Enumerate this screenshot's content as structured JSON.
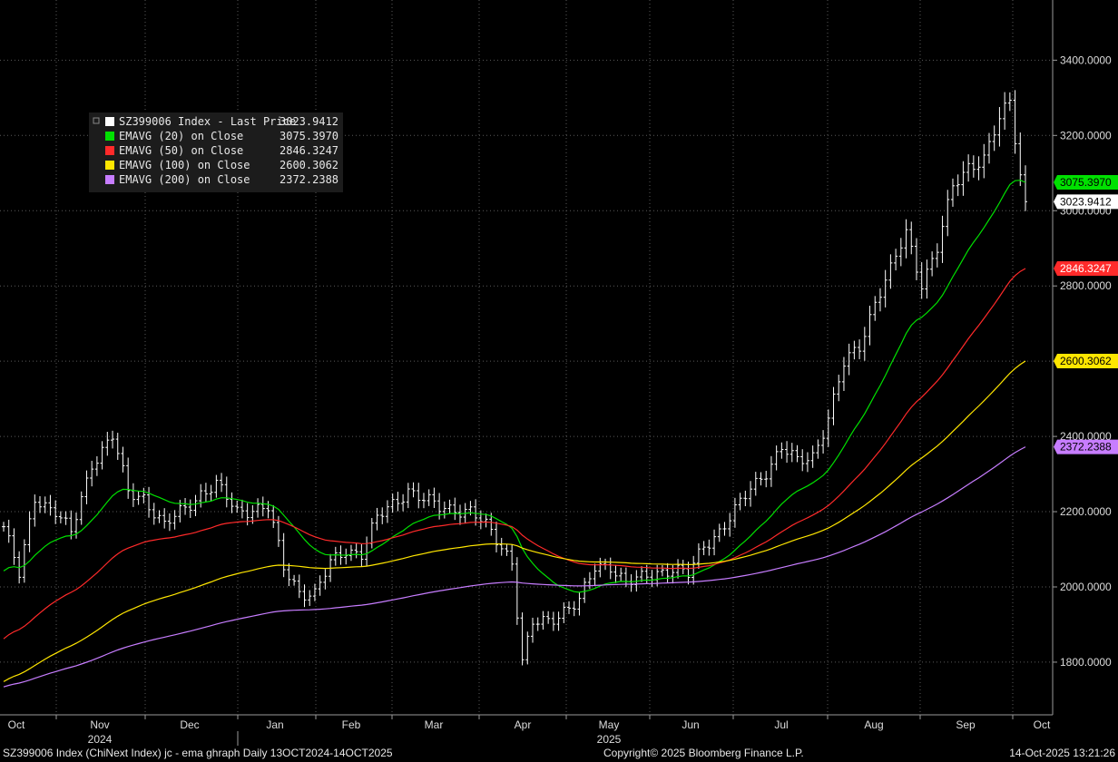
{
  "footer": {
    "left": "SZ399006 Index (ChiNext Index) jc - ema ghraph Daily 13OCT2024-14OCT2025",
    "center": "Copyright© 2025 Bloomberg Finance L.P.",
    "right": "14-Oct-2025 13:21:26"
  },
  "chart_data": {
    "type": "line",
    "title": "",
    "ylim": [
      1660,
      3560
    ],
    "y_ticks": [
      "1800.0000",
      "2000.0000",
      "2200.0000",
      "2400.0000",
      "2600.0000",
      "2800.0000",
      "3000.0000",
      "3200.0000",
      "3400.0000"
    ],
    "y_tick_values": [
      1800,
      2000,
      2200,
      2400,
      2600,
      2800,
      3000,
      3200,
      3400
    ],
    "x_month_labels": [
      "Oct",
      "Nov",
      "Dec",
      "Jan",
      "Feb",
      "Mar",
      "Apr",
      "May",
      "Jun",
      "Jul",
      "Aug",
      "Sep",
      "Oct"
    ],
    "x_year_labels": [
      {
        "label": "2024",
        "month_index": 1
      },
      {
        "label": "2025",
        "month_index": 7
      }
    ],
    "grid": true,
    "legend_position": "top-left",
    "legend": [
      {
        "name": "SZ399006 Index - Last Price",
        "value": "3023.9412",
        "color": "#ffffff"
      },
      {
        "name": "EMAVG (20)  on Close",
        "value": "3075.3970",
        "color": "#00e000"
      },
      {
        "name": "EMAVG (50)  on Close",
        "value": "2846.3247",
        "color": "#ff2a2a"
      },
      {
        "name": "EMAVG (100)  on Close",
        "value": "2600.3062",
        "color": "#ffe600"
      },
      {
        "name": "EMAVG (200)  on Close",
        "value": "2372.2388",
        "color": "#c77dff"
      }
    ],
    "price_anchors": [
      [
        0,
        2160
      ],
      [
        3,
        2030
      ],
      [
        6,
        2240
      ],
      [
        10,
        2200
      ],
      [
        13,
        2140
      ],
      [
        17,
        2330
      ],
      [
        21,
        2400
      ],
      [
        24,
        2250
      ],
      [
        27,
        2240
      ],
      [
        31,
        2160
      ],
      [
        35,
        2210
      ],
      [
        38,
        2250
      ],
      [
        41,
        2270
      ],
      [
        45,
        2200
      ],
      [
        48,
        2210
      ],
      [
        51,
        2210
      ],
      [
        54,
        2050
      ],
      [
        57,
        1990
      ],
      [
        60,
        1980
      ],
      [
        63,
        2060
      ],
      [
        66,
        2100
      ],
      [
        69,
        2090
      ],
      [
        72,
        2180
      ],
      [
        75,
        2220
      ],
      [
        78,
        2260
      ],
      [
        81,
        2230
      ],
      [
        84,
        2210
      ],
      [
        87,
        2210
      ],
      [
        90,
        2200
      ],
      [
        93,
        2160
      ],
      [
        96,
        2110
      ],
      [
        98,
        2070
      ],
      [
        100,
        1800
      ],
      [
        102,
        1900
      ],
      [
        105,
        1910
      ],
      [
        108,
        1940
      ],
      [
        111,
        1960
      ],
      [
        114,
        2050
      ],
      [
        117,
        2060
      ],
      [
        120,
        2010
      ],
      [
        123,
        2020
      ],
      [
        126,
        2040
      ],
      [
        129,
        2050
      ],
      [
        132,
        2030
      ],
      [
        135,
        2110
      ],
      [
        138,
        2150
      ],
      [
        141,
        2200
      ],
      [
        144,
        2260
      ],
      [
        147,
        2310
      ],
      [
        150,
        2370
      ],
      [
        153,
        2330
      ],
      [
        156,
        2350
      ],
      [
        159,
        2450
      ],
      [
        162,
        2590
      ],
      [
        165,
        2640
      ],
      [
        168,
        2760
      ],
      [
        171,
        2840
      ],
      [
        174,
        2940
      ],
      [
        177,
        2810
      ],
      [
        180,
        2900
      ],
      [
        183,
        3060
      ],
      [
        186,
        3120
      ],
      [
        189,
        3140
      ],
      [
        192,
        3240
      ],
      [
        194,
        3290
      ],
      [
        196,
        3100
      ],
      [
        197,
        3023.94
      ]
    ],
    "series": [
      {
        "name": "SZ399006 Index - Last Price",
        "color": "#ffffff",
        "last": 3023.9412
      },
      {
        "name": "EMAVG (20)  on Close",
        "color": "#00e000",
        "period": 20,
        "last": 3075.397
      },
      {
        "name": "EMAVG (50)  on Close",
        "color": "#ff2a2a",
        "period": 50,
        "last": 2846.3247
      },
      {
        "name": "EMAVG (100)  on Close",
        "color": "#ffe600",
        "period": 100,
        "last": 2600.3062
      },
      {
        "name": "EMAVG (200)  on Close",
        "color": "#c77dff",
        "period": 200,
        "last": 2372.2388
      }
    ],
    "last_value_tags": [
      {
        "value": "3075.3970",
        "y": 3075.397,
        "bg": "#00e000",
        "fg": "#000000"
      },
      {
        "value": "3023.9412",
        "y": 3023.9412,
        "bg": "#ffffff",
        "fg": "#000000"
      },
      {
        "value": "2846.3247",
        "y": 2846.3247,
        "bg": "#ff2a2a",
        "fg": "#ffffff"
      },
      {
        "value": "2600.3062",
        "y": 2600.3062,
        "bg": "#ffe600",
        "fg": "#000000"
      },
      {
        "value": "2372.2388",
        "y": 2372.2388,
        "bg": "#c77dff",
        "fg": "#000000"
      }
    ]
  }
}
